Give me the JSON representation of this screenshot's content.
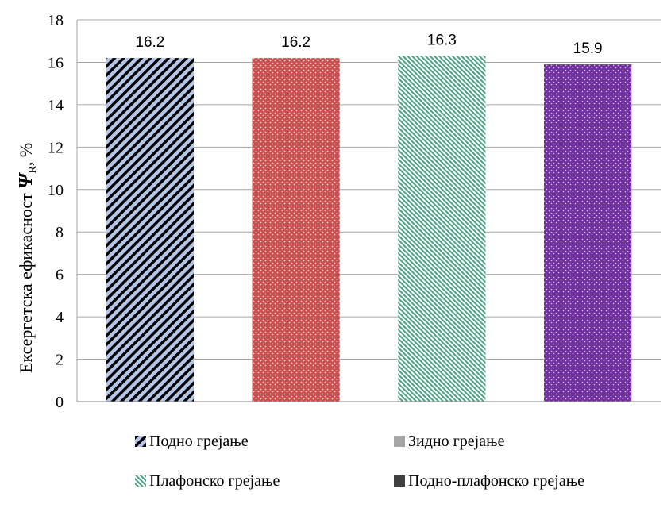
{
  "chart_data": {
    "type": "bar",
    "categories": [
      "Подно грејање",
      "Зидно грејање",
      "Плафонско грејање",
      "Подно-плафонско грејање"
    ],
    "values": [
      16.2,
      16.2,
      16.3,
      15.9
    ],
    "data_labels": [
      "16.2",
      "16.2",
      "16.3",
      "15.9"
    ],
    "ylabel": "Ексергетска ефикасност",
    "ylabel_symbol": "Ψ",
    "ylabel_subscript": "R",
    "ylabel_unit": ", %",
    "ylim": [
      0,
      18
    ],
    "yticks": [
      "0",
      "2",
      "4",
      "6",
      "8",
      "10",
      "12",
      "14",
      "16",
      "18"
    ],
    "grid": true,
    "legend_position": "bottom",
    "colors": {
      "podno_bg": "#b4c6e7",
      "podno_fg": "#000000",
      "zidno_bg": "#c9504f",
      "zidno_fg": "#ffffff",
      "plafonsko_bg": "#ffffff",
      "plafonsko_fg": "#4aa184",
      "podno_plafonsko_bg": "#7030a0",
      "podno_plafonsko_fg": "#ffffff"
    }
  },
  "legend": {
    "items": [
      {
        "label": "Подно грејање"
      },
      {
        "label": "Зидно грејање"
      },
      {
        "label": "Плафонско грејање"
      },
      {
        "label": "Подно-плафонско грејање"
      }
    ]
  }
}
